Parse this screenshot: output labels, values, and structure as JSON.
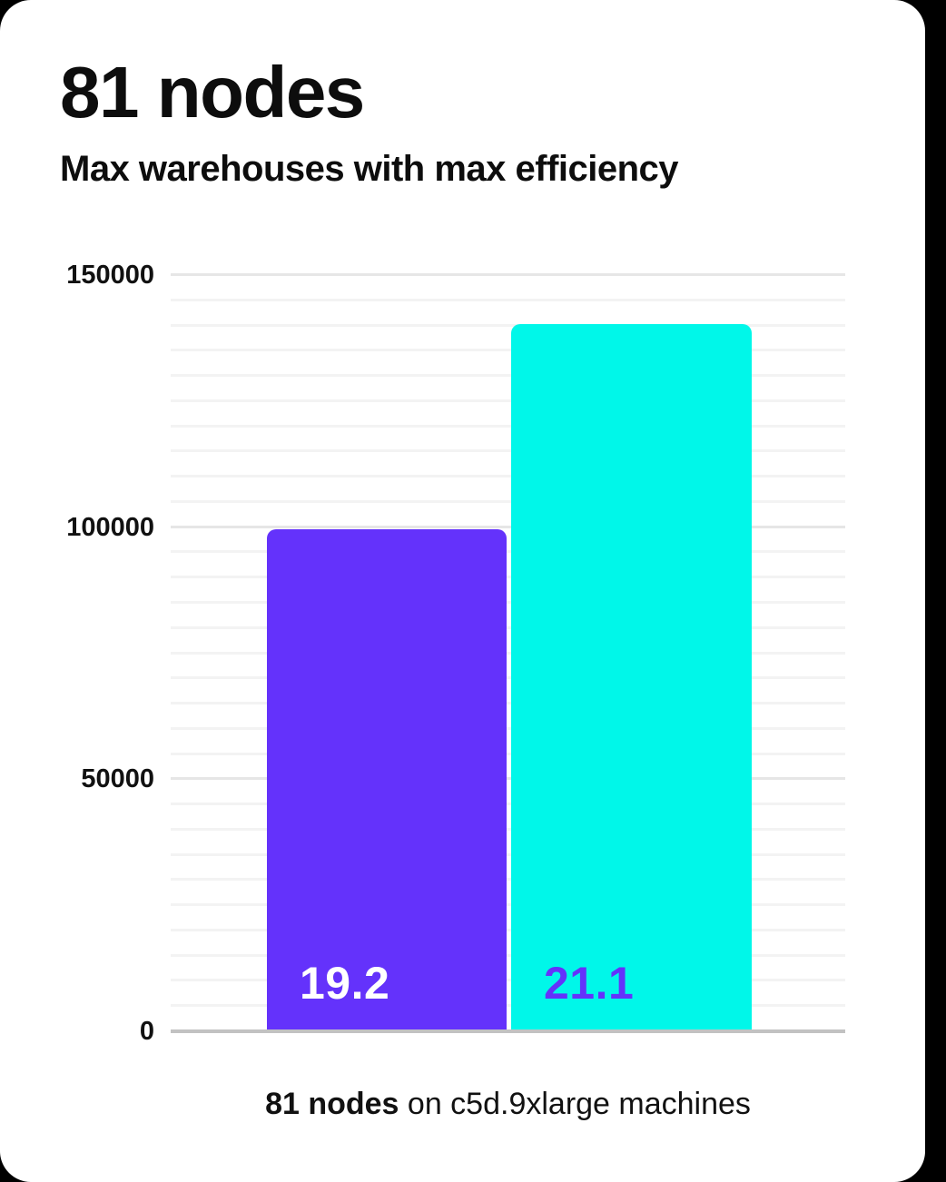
{
  "page": {
    "title": "81 nodes",
    "subtitle": "Max warehouses with max efficiency"
  },
  "caption": {
    "bold": "81 nodes",
    "rest": " on c5d.9xlarge machines"
  },
  "chart_data": {
    "type": "bar",
    "title": "81 nodes",
    "subtitle": "Max warehouses with max efficiency",
    "xlabel": "",
    "ylabel": "",
    "ylim": [
      0,
      150000
    ],
    "ytick_interval": 50000,
    "grid_interval": 5000,
    "grid": true,
    "legend": false,
    "yticks": [
      {
        "label": "150000",
        "value": 150000
      },
      {
        "label": "100000",
        "value": 100000
      },
      {
        "label": "50000",
        "value": 50000
      },
      {
        "label": "0",
        "value": 0
      }
    ],
    "bars": [
      {
        "value": 99500,
        "label": "19.2",
        "color": "#6432fb",
        "label_color": "#ffffff"
      },
      {
        "value": 140200,
        "label": "21.1",
        "color": "#00f7e9",
        "label_color": "#6432fb"
      }
    ],
    "caption": "81 nodes on c5d.9xlarge machines"
  },
  "colors": {
    "purple": "#6432fb",
    "cyan": "#00f7e9",
    "axis": "#c2c2c2",
    "grid_minor": "#f3f3f3",
    "grid_major": "#e6e6e6",
    "text": "#0d0d0d",
    "card_bg": "#ffffff",
    "page_bg": "#000000"
  }
}
